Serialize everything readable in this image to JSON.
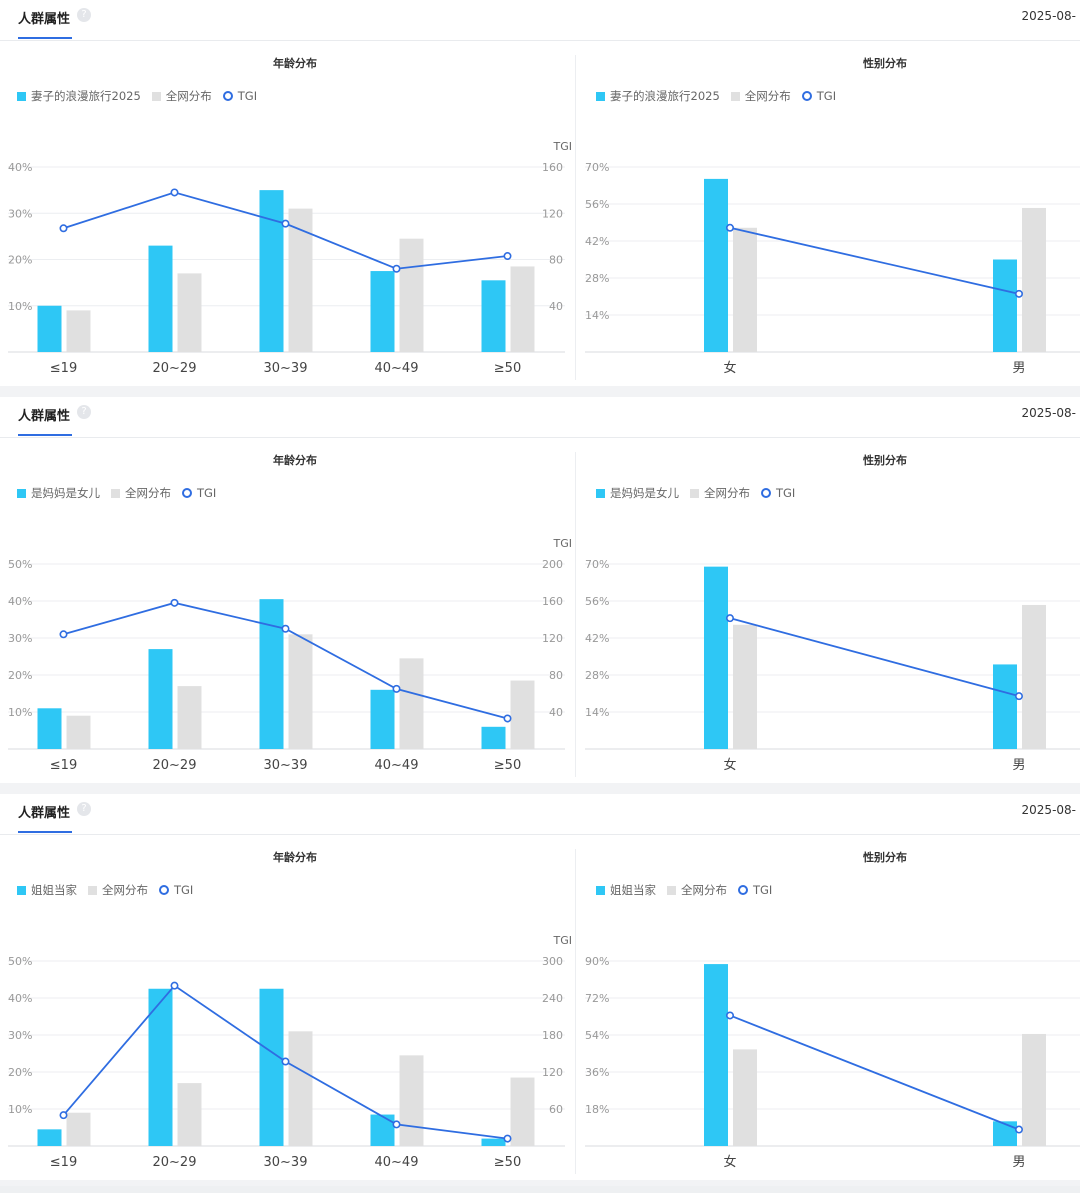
{
  "panels": [
    {
      "header": {
        "title": "人群属性",
        "help": "?",
        "date": "2025-08-"
      },
      "age": {
        "title": "年龄分布",
        "legend": {
          "series": "妻子的浪漫旅行2025",
          "baseline": "全网分布",
          "tgi": "TGI"
        },
        "yticks_left": [
          "10%",
          "20%",
          "30%",
          "40%"
        ],
        "yticks_right": [
          "40",
          "80",
          "120",
          "160"
        ],
        "right_axis_title": "TGI"
      },
      "gender": {
        "title": "性别分布",
        "legend": {
          "series": "妻子的浪漫旅行2025",
          "baseline": "全网分布",
          "tgi": "TGI"
        },
        "yticks_left": [
          "14%",
          "28%",
          "42%",
          "56%",
          "70%"
        ]
      }
    },
    {
      "header": {
        "title": "人群属性",
        "help": "?",
        "date": "2025-08-"
      },
      "age": {
        "title": "年龄分布",
        "legend": {
          "series": "是妈妈是女儿",
          "baseline": "全网分布",
          "tgi": "TGI"
        },
        "yticks_left": [
          "10%",
          "20%",
          "30%",
          "40%",
          "50%"
        ],
        "yticks_right": [
          "40",
          "80",
          "120",
          "160",
          "200"
        ],
        "right_axis_title": "TGI"
      },
      "gender": {
        "title": "性别分布",
        "legend": {
          "series": "是妈妈是女儿",
          "baseline": "全网分布",
          "tgi": "TGI"
        },
        "yticks_left": [
          "14%",
          "28%",
          "42%",
          "56%",
          "70%"
        ]
      }
    },
    {
      "header": {
        "title": "人群属性",
        "help": "?",
        "date": "2025-08-"
      },
      "age": {
        "title": "年龄分布",
        "legend": {
          "series": "姐姐当家",
          "baseline": "全网分布",
          "tgi": "TGI"
        },
        "yticks_left": [
          "10%",
          "20%",
          "30%",
          "40%",
          "50%"
        ],
        "yticks_right": [
          "60",
          "120",
          "180",
          "240",
          "300"
        ],
        "right_axis_title": "TGI"
      },
      "gender": {
        "title": "性别分布",
        "legend": {
          "series": "姐姐当家",
          "baseline": "全网分布",
          "tgi": "TGI"
        },
        "yticks_left": [
          "18%",
          "36%",
          "54%",
          "72%",
          "90%"
        ]
      }
    }
  ],
  "colors": {
    "series": "#2ec7f5",
    "baseline": "#e0e0e0",
    "tgi": "#2f6de1",
    "grid": "#eceef1",
    "axis_text": "#999999"
  },
  "chart_data": [
    {
      "type": "bar",
      "title": "年龄分布",
      "categories": [
        "≤19",
        "20~29",
        "30~39",
        "40~49",
        "≥50"
      ],
      "ylim": [
        0,
        40
      ],
      "y2lim": [
        0,
        160
      ],
      "series": [
        {
          "name": "妻子的浪漫旅行2025",
          "axis": "left",
          "values": [
            10,
            23,
            35,
            17.5,
            15.5
          ]
        },
        {
          "name": "全网分布",
          "axis": "left",
          "values": [
            9,
            17,
            31,
            24.5,
            18.5
          ]
        },
        {
          "name": "TGI",
          "axis": "right",
          "line": true,
          "values": [
            107,
            138,
            111,
            72,
            83
          ]
        }
      ]
    },
    {
      "type": "bar",
      "title": "性别分布",
      "categories": [
        "女",
        "男"
      ],
      "ylim": [
        0,
        70
      ],
      "series": [
        {
          "name": "妻子的浪漫旅行2025",
          "axis": "left",
          "values": [
            65.5,
            35
          ]
        },
        {
          "name": "全网分布",
          "axis": "left",
          "values": [
            47,
            54.5
          ]
        },
        {
          "name": "TGI",
          "axis": "left",
          "line": true,
          "values": [
            47,
            22
          ]
        }
      ]
    },
    {
      "type": "bar",
      "title": "年龄分布",
      "categories": [
        "≤19",
        "20~29",
        "30~39",
        "40~49",
        "≥50"
      ],
      "ylim": [
        0,
        50
      ],
      "y2lim": [
        0,
        200
      ],
      "series": [
        {
          "name": "是妈妈是女儿",
          "axis": "left",
          "values": [
            11,
            27,
            40.5,
            16,
            6
          ]
        },
        {
          "name": "全网分布",
          "axis": "left",
          "values": [
            9,
            17,
            31,
            24.5,
            18.5
          ]
        },
        {
          "name": "TGI",
          "axis": "right",
          "line": true,
          "values": [
            124,
            158,
            130,
            65,
            33
          ]
        }
      ]
    },
    {
      "type": "bar",
      "title": "性别分布",
      "categories": [
        "女",
        "男"
      ],
      "ylim": [
        0,
        70
      ],
      "series": [
        {
          "name": "是妈妈是女儿",
          "axis": "left",
          "values": [
            69,
            32
          ]
        },
        {
          "name": "全网分布",
          "axis": "left",
          "values": [
            47,
            54.5
          ]
        },
        {
          "name": "TGI",
          "axis": "left",
          "line": true,
          "values": [
            49.5,
            20
          ]
        }
      ]
    },
    {
      "type": "bar",
      "title": "年龄分布",
      "categories": [
        "≤19",
        "20~29",
        "30~39",
        "40~49",
        "≥50"
      ],
      "ylim": [
        0,
        50
      ],
      "y2lim": [
        0,
        300
      ],
      "series": [
        {
          "name": "姐姐当家",
          "axis": "left",
          "values": [
            4.5,
            42.5,
            42.5,
            8.5,
            2
          ]
        },
        {
          "name": "全网分布",
          "axis": "left",
          "values": [
            9,
            17,
            31,
            24.5,
            18.5
          ]
        },
        {
          "name": "TGI",
          "axis": "right",
          "line": true,
          "values": [
            50,
            260,
            137,
            35,
            12
          ]
        }
      ]
    },
    {
      "type": "bar",
      "title": "性别分布",
      "categories": [
        "女",
        "男"
      ],
      "ylim": [
        0,
        90
      ],
      "series": [
        {
          "name": "姐姐当家",
          "axis": "left",
          "values": [
            88.5,
            12
          ]
        },
        {
          "name": "全网分布",
          "axis": "left",
          "values": [
            47,
            54.5
          ]
        },
        {
          "name": "TGI",
          "axis": "left",
          "line": true,
          "values": [
            63.5,
            8
          ]
        }
      ]
    }
  ]
}
